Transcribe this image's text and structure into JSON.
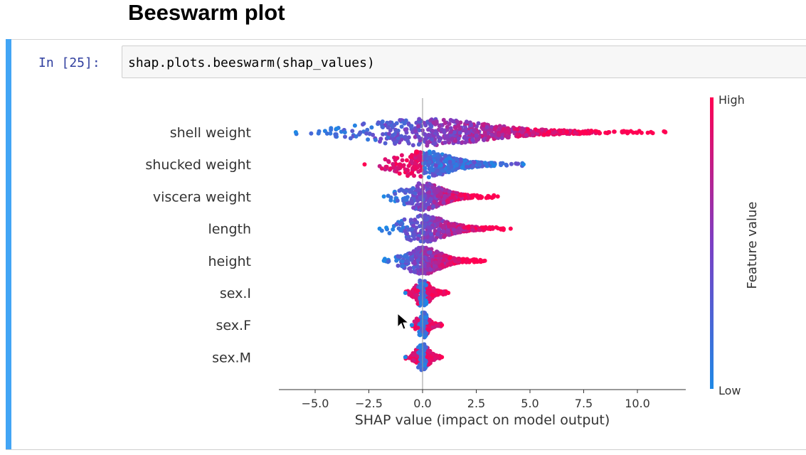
{
  "heading": "Beeswarm plot",
  "cell": {
    "prompt": "In [25]:",
    "code": "shap.plots.beeswarm(shap_values)"
  },
  "chart_data": {
    "type": "scatter",
    "subtype": "shap-beeswarm",
    "xlabel": "SHAP value (impact on model output)",
    "xlim": [
      -6.8,
      12.2
    ],
    "x_ticks": [
      -5.0,
      -2.5,
      0.0,
      2.5,
      5.0,
      7.5,
      10.0
    ],
    "x_tick_labels": [
      "−5.0",
      "−2.5",
      "0.0",
      "2.5",
      "5.0",
      "7.5",
      "10.0"
    ],
    "colorbar": {
      "label": "Feature value",
      "high_label": "High",
      "low_label": "Low",
      "low_color": "#1E88E5",
      "high_color": "#FF0052"
    },
    "features": [
      {
        "name": "shell weight",
        "min": -5.9,
        "max": 11.3
      },
      {
        "name": "shucked weight",
        "min": -2.7,
        "max": 4.7
      },
      {
        "name": "viscera weight",
        "min": -1.8,
        "max": 3.5
      },
      {
        "name": "length",
        "min": -2.0,
        "max": 4.1
      },
      {
        "name": "height",
        "min": -1.8,
        "max": 2.9
      },
      {
        "name": "sex.I",
        "min": -0.8,
        "max": 1.2
      },
      {
        "name": "sex.F",
        "min": -0.5,
        "max": 0.9
      },
      {
        "name": "sex.M",
        "min": -0.8,
        "max": 0.9
      }
    ]
  }
}
